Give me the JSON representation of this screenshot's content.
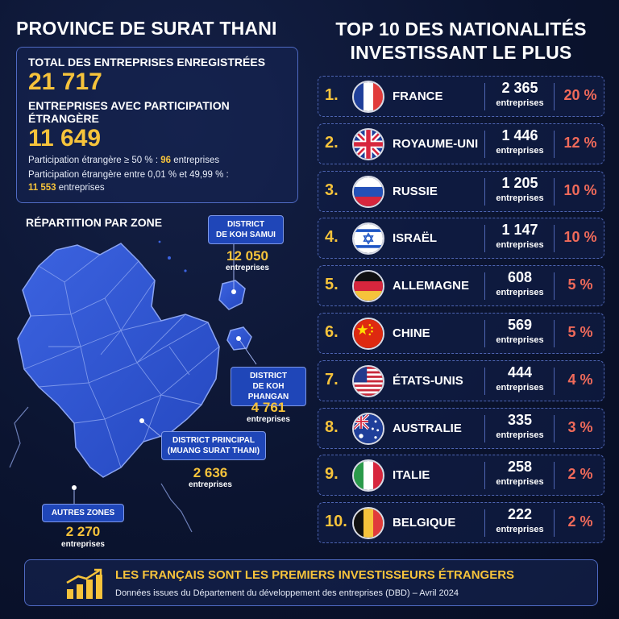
{
  "left": {
    "title": "PROVINCE DE SURAT THANI",
    "total_label": "TOTAL DES ENTREPRISES ENREGISTRÉES",
    "total_value": "21 717",
    "foreign_label": "ENTREPRISES AVEC PARTICIPATION ÉTRANGÈRE",
    "foreign_value": "11 649",
    "part1_text": "Participation étrangère ≥ 50 % :",
    "part1_value": "96",
    "part1_unit": "entreprises",
    "part2_text": "Participation étrangère entre 0,01 % et 49,99 % :",
    "part2_value": "11 553",
    "part2_unit": "entreprises",
    "map_title": "RÉPARTITION PAR ZONE"
  },
  "zones": [
    {
      "name": "DISTRICT DE KOH SAMUI",
      "line1": "DISTRICT",
      "line2": "DE KOH SAMUI",
      "value": "12 050",
      "unit": "entreprises"
    },
    {
      "name": "DISTRICT DE KOH PHANGAN",
      "line1": "DISTRICT",
      "line2": "DE KOH PHANGAN",
      "value": "4 761",
      "unit": "entreprises"
    },
    {
      "name": "DISTRICT PRINCIPAL (MUANG SURAT THANI)",
      "line1": "DISTRICT PRINCIPAL",
      "line2": "(MUANG SURAT THANI)",
      "value": "2 636",
      "unit": "entreprises"
    },
    {
      "name": "AUTRES ZONES",
      "line1": "AUTRES ZONES",
      "line2": "",
      "value": "2 270",
      "unit": "entreprises"
    }
  ],
  "right": {
    "title_line1": "TOP 10 DES NATIONALITÉS",
    "title_line2": "INVESTISSANT LE PLUS",
    "unit": "entreprises"
  },
  "ranking": [
    {
      "rank": "1.",
      "country": "FRANCE",
      "count": "2 365",
      "pct": "20 %",
      "flag": "france-flag"
    },
    {
      "rank": "2.",
      "country": "ROYAUME-UNI",
      "count": "1 446",
      "pct": "12 %",
      "flag": "uk-flag"
    },
    {
      "rank": "3.",
      "country": "RUSSIE",
      "count": "1 205",
      "pct": "10 %",
      "flag": "russia-flag"
    },
    {
      "rank": "4.",
      "country": "ISRAËL",
      "count": "1 147",
      "pct": "10 %",
      "flag": "israel-flag"
    },
    {
      "rank": "5.",
      "country": "ALLEMAGNE",
      "count": "608",
      "pct": "5 %",
      "flag": "germany-flag"
    },
    {
      "rank": "6.",
      "country": "CHINE",
      "count": "569",
      "pct": "5 %",
      "flag": "china-flag"
    },
    {
      "rank": "7.",
      "country": "ÉTATS-UNIS",
      "count": "444",
      "pct": "4 %",
      "flag": "usa-flag"
    },
    {
      "rank": "8.",
      "country": "AUSTRALIE",
      "count": "335",
      "pct": "3 %",
      "flag": "australia-flag"
    },
    {
      "rank": "9.",
      "country": "ITALIE",
      "count": "258",
      "pct": "2 %",
      "flag": "italy-flag"
    },
    {
      "rank": "10.",
      "country": "BELGIQUE",
      "count": "222",
      "pct": "2 %",
      "flag": "belgium-flag"
    }
  ],
  "footer": {
    "headline": "LES FRANÇAIS SONT LES PREMIERS INVESTISSEURS ÉTRANGERS",
    "source": "Données issues du Département du développement des entreprises (DBD) – Avril 2024",
    "icon": "growth-chart-icon"
  },
  "colors": {
    "background": "#0b1430",
    "accent_yellow": "#f6c33b",
    "percent_red": "#f06a5a",
    "map_blue": "#2f55d4",
    "box_border": "#4f6ac2"
  },
  "chart_data": [
    {
      "type": "table",
      "title": "TOP 10 DES NATIONALITÉS INVESTISSANT LE PLUS",
      "columns": [
        "rank",
        "country",
        "entreprises",
        "percent"
      ],
      "rows": [
        [
          1,
          "FRANCE",
          2365,
          20
        ],
        [
          2,
          "ROYAUME-UNI",
          1446,
          12
        ],
        [
          3,
          "RUSSIE",
          1205,
          10
        ],
        [
          4,
          "ISRAËL",
          1147,
          10
        ],
        [
          5,
          "ALLEMAGNE",
          608,
          5
        ],
        [
          6,
          "CHINE",
          569,
          5
        ],
        [
          7,
          "ÉTATS-UNIS",
          444,
          4
        ],
        [
          8,
          "AUSTRALIE",
          335,
          3
        ],
        [
          9,
          "ITALIE",
          258,
          2
        ],
        [
          10,
          "BELGIQUE",
          222,
          2
        ]
      ]
    },
    {
      "type": "table",
      "title": "RÉPARTITION PAR ZONE",
      "columns": [
        "zone",
        "entreprises"
      ],
      "rows": [
        [
          "DISTRICT DE KOH SAMUI",
          12050
        ],
        [
          "DISTRICT DE KOH PHANGAN",
          4761
        ],
        [
          "DISTRICT PRINCIPAL (MUANG SURAT THANI)",
          2636
        ],
        [
          "AUTRES ZONES",
          2270
        ]
      ]
    }
  ]
}
